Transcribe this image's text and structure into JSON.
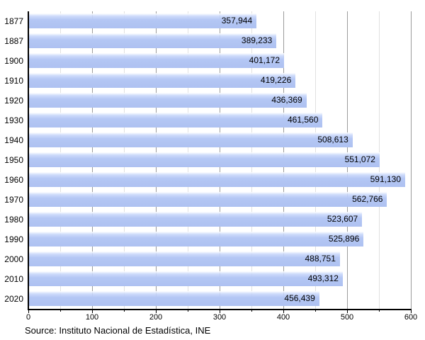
{
  "chart_data": {
    "type": "bar",
    "orientation": "horizontal",
    "title": "",
    "xlabel": "",
    "ylabel": "",
    "categories": [
      "1877",
      "1887",
      "1900",
      "1910",
      "1920",
      "1930",
      "1940",
      "1950",
      "1960",
      "1970",
      "1980",
      "1990",
      "2000",
      "2010",
      "2020"
    ],
    "values": [
      357944,
      389233,
      401172,
      419226,
      436369,
      461560,
      508613,
      551072,
      591130,
      562766,
      523607,
      525896,
      488751,
      493312,
      456439
    ],
    "value_labels": [
      "357,944",
      "389,233",
      "401,172",
      "419,226",
      "436,369",
      "461,560",
      "508,613",
      "551,072",
      "591,130",
      "562,766",
      "523,607",
      "525,896",
      "488,751",
      "493,312",
      "456,439"
    ],
    "xlim": [
      0,
      600000
    ],
    "x_tick_labels": [
      "0",
      "100",
      "200",
      "300",
      "400",
      "500",
      "600"
    ],
    "x_major_ticks": [
      0,
      100000,
      200000,
      300000,
      400000,
      500000,
      600000
    ],
    "x_minor_ticks": [
      50000,
      150000,
      250000,
      350000,
      450000,
      550000
    ],
    "grid": "vertical",
    "legend": "none",
    "bar_color": "#b2c5f3",
    "grid_major_color": "#9c9c9c",
    "grid_minor_color": "#e0e0e0",
    "axis_color": "#000000",
    "source": "Source: Instituto Nacional de Estadística, INE"
  }
}
